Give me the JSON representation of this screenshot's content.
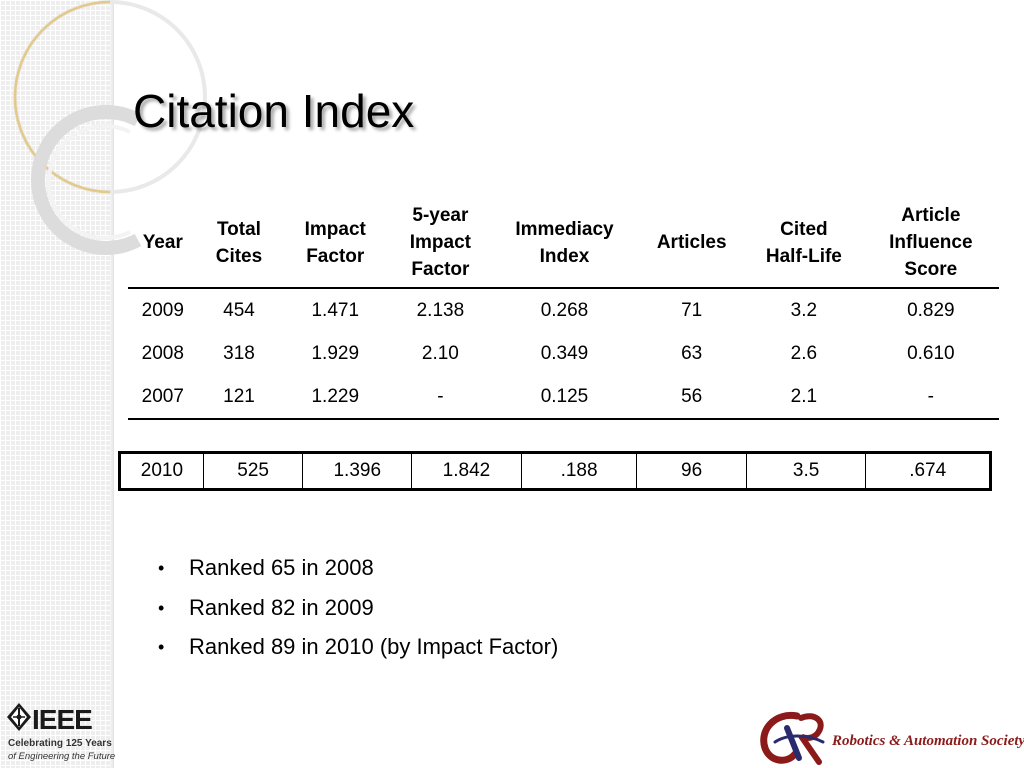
{
  "slide": {
    "title": "Citation Index",
    "table": {
      "headers": [
        [
          "Year"
        ],
        [
          "Total",
          "Cites"
        ],
        [
          "Impact",
          "Factor"
        ],
        [
          "5-year",
          "Impact",
          "Factor"
        ],
        [
          "Immediacy",
          "Index"
        ],
        [
          "Articles"
        ],
        [
          "Cited",
          "Half-Life"
        ],
        [
          "Article",
          "Influence",
          "Score"
        ]
      ],
      "rows": [
        [
          "2009",
          "454",
          "1.471",
          "2.138",
          "0.268",
          "71",
          "3.2",
          "0.829"
        ],
        [
          "2008",
          "318",
          "1.929",
          "2.10",
          "0.349",
          "63",
          "2.6",
          "0.610"
        ],
        [
          "2007",
          "121",
          "1.229",
          "-",
          "0.125",
          "56",
          "2.1",
          "-"
        ]
      ]
    },
    "summary_row": [
      "2010",
      "525",
      "1.396",
      "1.842",
      ".188",
      "96",
      "3.5",
      ".674"
    ],
    "bullets": [
      "Ranked 65 in 2008",
      "Ranked 82 in 2009",
      "Ranked 89 in 2010 (by Impact Factor)"
    ],
    "bullet_glyph": "•"
  },
  "footer": {
    "ieee": {
      "wordmark": "IEEE",
      "tagline_1": "Celebrating 125 Years",
      "tagline_2": "of Engineering the Future"
    },
    "society": {
      "name": "Robotics & Automation Society"
    }
  },
  "colors": {
    "society_red": "#8b1a1a",
    "society_blue": "#2a2a6e",
    "deco_gold": "#e3c98a"
  },
  "icons": {
    "ieee_logo": "diamond-kite-icon",
    "ras_logo": "ra-swirl-icon"
  }
}
